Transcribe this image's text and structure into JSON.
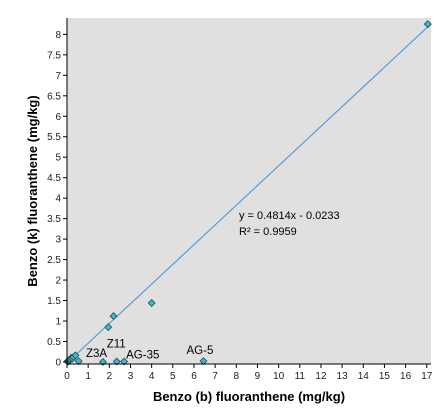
{
  "chart_data": {
    "type": "scatter",
    "title": "",
    "xlabel": "Benzo (b) fluoranthene (mg/kg)",
    "ylabel": "Benzo (k) fluoranthene (mg/kg)",
    "xlim": [
      0,
      17.2
    ],
    "ylim": [
      -0.05,
      8.4
    ],
    "xticks": [
      0,
      1,
      2,
      3,
      4,
      5,
      6,
      7,
      8,
      9,
      10,
      11,
      12,
      13,
      14,
      15,
      16,
      17
    ],
    "yticks": [
      0,
      0.5,
      1,
      1.5,
      2,
      2.5,
      3,
      3.5,
      4,
      4.5,
      5,
      5.5,
      6,
      6.5,
      7,
      7.5,
      8
    ],
    "grid": false,
    "legend": "none",
    "background_color": "#e0e0e0",
    "marker_color": "#40b8c8",
    "marker_edge_color": "#1a4a55",
    "trendline_color": "#5b9bd5",
    "trendline": {
      "slope": 0.4814,
      "intercept": -0.0233,
      "x_range": [
        0,
        17.2
      ]
    },
    "equation_text": "y = 0.4814x - 0.0233",
    "r2_text": "R² = 0.9959",
    "points": [
      {
        "x": 0.02,
        "y": 0.01
      },
      {
        "x": 0.05,
        "y": 0.03
      },
      {
        "x": 0.08,
        "y": 0.02
      },
      {
        "x": 0.1,
        "y": 0.05
      },
      {
        "x": 0.13,
        "y": 0.04
      },
      {
        "x": 0.15,
        "y": 0.07
      },
      {
        "x": 0.2,
        "y": 0.1
      },
      {
        "x": 0.25,
        "y": 0.08
      },
      {
        "x": 0.3,
        "y": 0.12
      },
      {
        "x": 0.4,
        "y": 0.16
      },
      {
        "x": 0.55,
        "y": 0.02
      },
      {
        "x": 1.7,
        "y": 0.0,
        "label": "Z3A"
      },
      {
        "x": 1.95,
        "y": 0.85
      },
      {
        "x": 2.2,
        "y": 1.12
      },
      {
        "x": 2.35,
        "y": 0.01,
        "label": "Z11"
      },
      {
        "x": 2.7,
        "y": 0.01,
        "label": "AG-35"
      },
      {
        "x": 4.0,
        "y": 1.44
      },
      {
        "x": 6.45,
        "y": 0.02,
        "label": "AG-5"
      },
      {
        "x": 17.05,
        "y": 8.25
      }
    ]
  }
}
